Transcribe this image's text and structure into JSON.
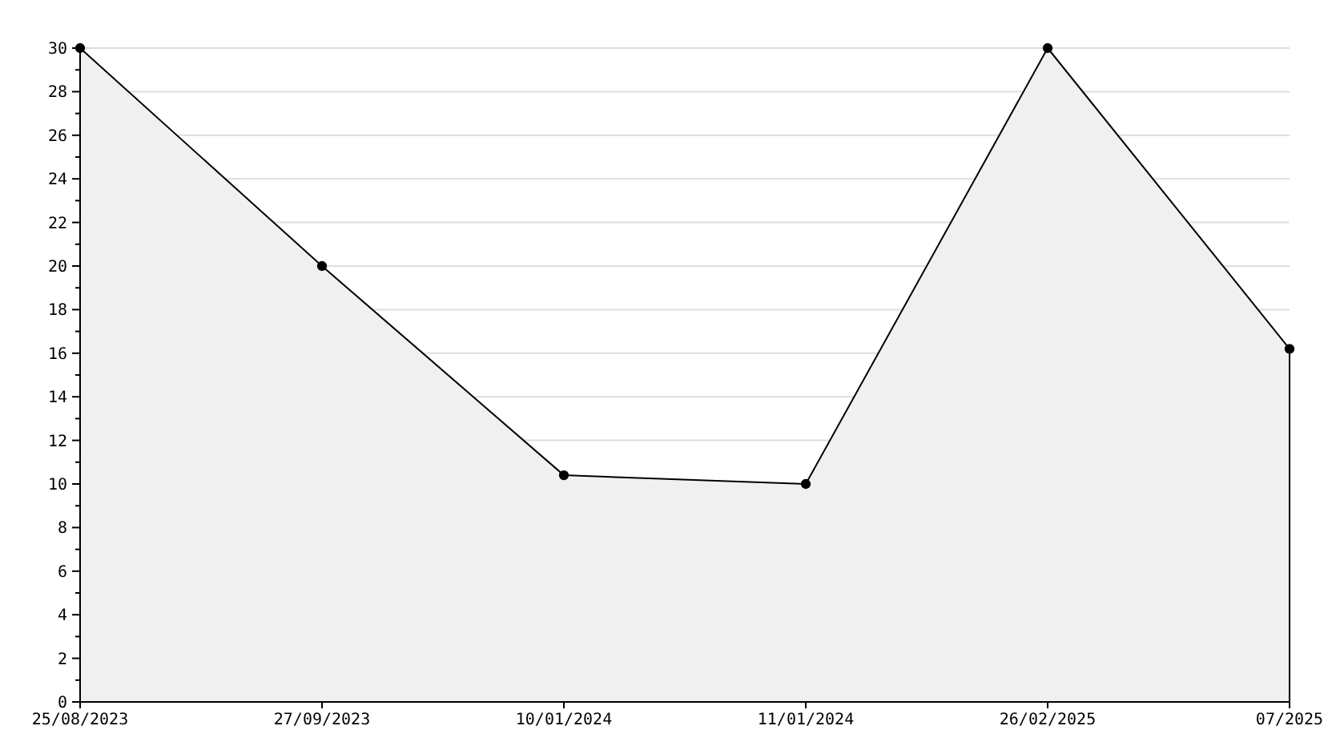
{
  "chart_data": {
    "type": "area",
    "categories": [
      "25/08/2023",
      "27/09/2023",
      "10/01/2024",
      "11/01/2024",
      "26/02/2025",
      "07/2025"
    ],
    "series": [
      {
        "color": "#000000",
        "values": [
          30,
          20,
          10.4,
          10,
          30,
          16.2
        ]
      }
    ],
    "ylim": [
      0,
      30
    ],
    "yticks": [
      0,
      {
        "value": 1,
        "label": null
      },
      2,
      {
        "value": 3,
        "label": null
      },
      4,
      {
        "value": 5,
        "label": null
      },
      6,
      {
        "value": 7,
        "label": null
      },
      8,
      {
        "value": 9,
        "label": null
      },
      10,
      {
        "value": 11,
        "label": null
      },
      12,
      {
        "value": 13,
        "label": null
      },
      14,
      {
        "value": 15,
        "label": null
      },
      16,
      {
        "value": 17,
        "label": null
      },
      18,
      {
        "value": 19,
        "label": null
      },
      20,
      {
        "value": 21,
        "label": null
      },
      22,
      {
        "value": 23,
        "label": null
      },
      24,
      {
        "value": 25,
        "label": null
      },
      26,
      {
        "value": 27,
        "label": null
      },
      28,
      {
        "value": 29,
        "label": null
      },
      30
    ],
    "grid": "y",
    "marker": "circle",
    "line_style": "solid"
  }
}
